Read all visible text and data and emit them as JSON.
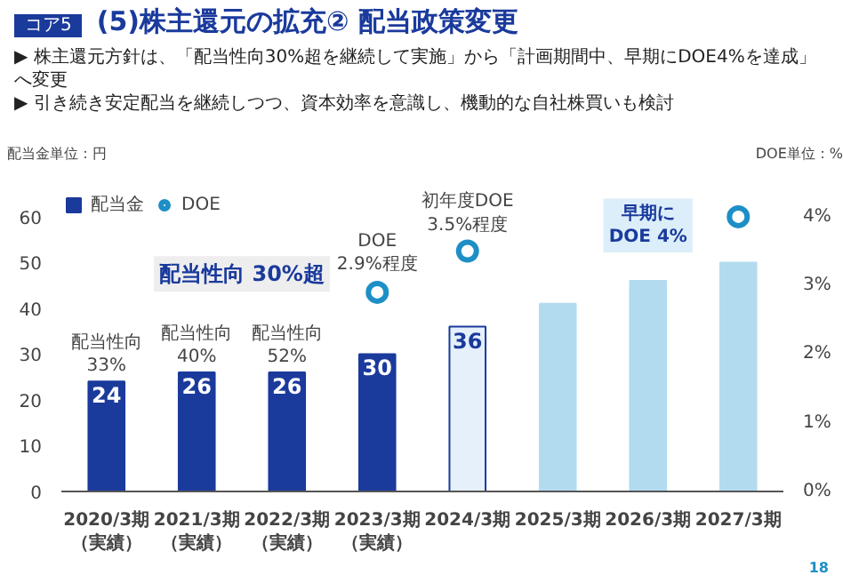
{
  "chart_data": {
    "type": "bar",
    "title": "(5)株主還元の拡充② 配当政策変更",
    "subtitle": "▶ 株主還元方針は、「配当性向30%超を継続して実施」から「計画期間中、早期にDOE4%を達成」へ変更\n▶ 引き続き安定配当を継続しつつ、資本効率を意識し、機動的な自社株買いも検討",
    "categories": [
      "2020/3期（実績）",
      "2021/3期（実績）",
      "2022/3期（実績）",
      "2023/3期（実績）",
      "2024/3期",
      "2025/3期",
      "2026/3期",
      "2027/3期"
    ],
    "series": [
      {
        "name": "配当金",
        "colors": [
          "#1a3a9c",
          "#1a3a9c",
          "#1a3a9c",
          "#1a3a9c",
          "#e6f0fb",
          "#1a3a9c",
          "#1a3a9c",
          "#1a3a9c"
        ],
        "color": "#1a3a9c",
        "values": [
          24,
          26,
          26,
          30,
          36,
          null,
          null,
          null
        ],
        "value_labels": [
          "24",
          "26",
          "26",
          "30",
          "36",
          null,
          null,
          null
        ]
      },
      {
        "color": "#b3dbef",
        "values": [
          null,
          null,
          null,
          null,
          null,
          41,
          46,
          50
        ]
      },
      {
        "name": "DOE",
        "type": "scatter",
        "axis": "y2",
        "marker": "circle",
        "color": "#1e8fc6",
        "values": [
          null,
          null,
          null,
          2.9,
          3.5,
          null,
          null,
          4.0
        ]
      }
    ],
    "ylabel": "配当金単位：円",
    "y2label": "DOE単位：%",
    "ylim": [
      0,
      66
    ],
    "yticks": [
      0,
      10,
      20,
      30,
      40,
      50,
      60
    ],
    "y2lim": [
      0,
      4.4
    ],
    "y2ticks": [
      {
        "value": 0,
        "label": "0%"
      },
      {
        "value": 1,
        "label": "1%"
      },
      {
        "value": 2,
        "label": "2%"
      },
      {
        "value": 3,
        "label": "3%"
      },
      {
        "value": 4,
        "label": "4%"
      }
    ],
    "grid": false,
    "legend": "top left",
    "annotations": [
      "コア5",
      "18",
      "配当性向 30%超",
      "早期に\nDOE 4%",
      "DOE\n2.9%程度",
      "初年度DOE\n3.5%程度",
      {
        "text": "配当性向\n33%",
        "x": "2020/3期（実績）",
        "y": 24
      },
      {
        "text": "配当性向\n40%",
        "x": "2021/3期（実績）",
        "y": 26
      },
      {
        "text": "配当性向\n52%",
        "x": "2022/3期（実績）",
        "y": 26
      }
    ]
  }
}
